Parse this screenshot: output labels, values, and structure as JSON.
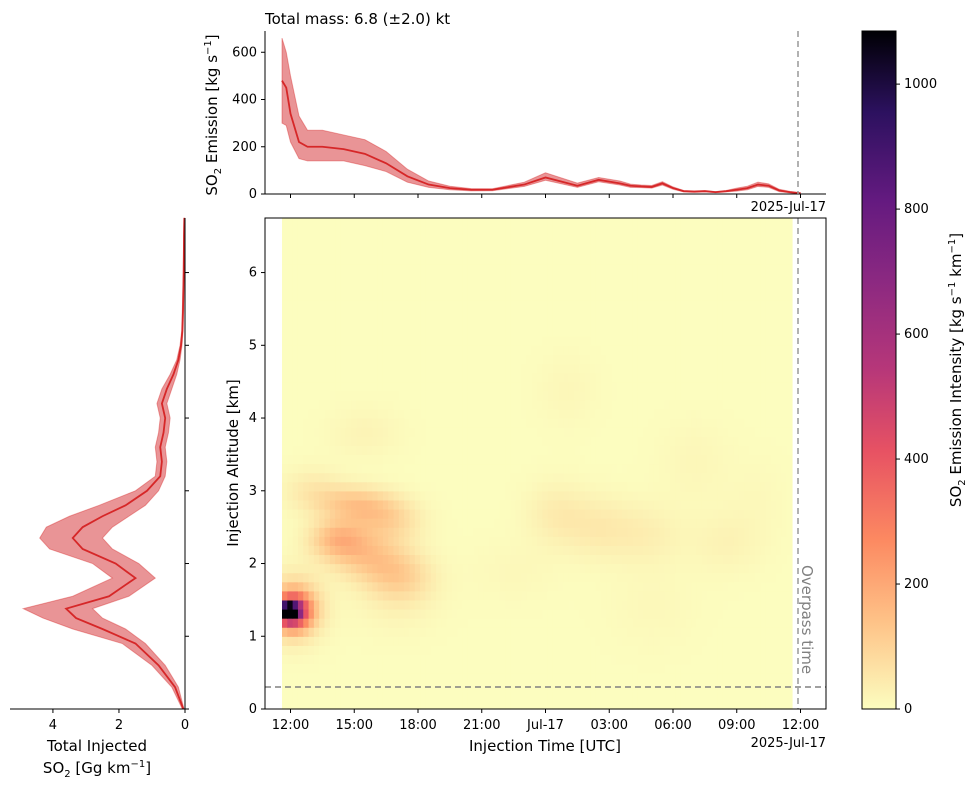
{
  "top_panel": {
    "title": "Total mass: 6.8 (±2.0) kt",
    "ylabel_prefix": "SO",
    "ylabel_sub": "2",
    "ylabel_main": " Emission [kg s",
    "ylabel_sup": "−1",
    "ylabel_close": "]",
    "date_label": "2025-Jul-17"
  },
  "left_panel": {
    "xlabel_line1": "Total Injected",
    "xlabel_line2_prefix": "SO",
    "xlabel_line2_sub": "2",
    "xlabel_line2_main": " [Gg km",
    "xlabel_line2_sup": "−1",
    "xlabel_line2_close": "]"
  },
  "main_panel": {
    "xlabel": "Injection Time [UTC]",
    "ylabel": "Injection Altitude [km]",
    "date_label": "2025-Jul-17",
    "overpass_label": "Overpass time"
  },
  "colorbar": {
    "label_prefix": "SO",
    "label_sub": "2",
    "label_main": " Emission Intensity [kg s",
    "label_sup1": "−1",
    "label_mid": " km",
    "label_sup2": "−1",
    "label_close": "]",
    "colormap": "magma_r",
    "range": [
      0,
      1085
    ],
    "ticks": [
      "0",
      "200",
      "400",
      "600",
      "800",
      "1000"
    ]
  },
  "colors": {
    "line": "#d62728",
    "band": "#e88e90",
    "reference_line": "#999999"
  },
  "chart_data": [
    {
      "panel": "top",
      "type": "line",
      "x_unit": "hours since 2025-07-16 12:00 UTC",
      "x": [
        -0.4,
        -0.2,
        0,
        0.4,
        0.8,
        1.5,
        2.5,
        3.5,
        4.5,
        5.5,
        6.5,
        7.5,
        8.5,
        9.5,
        11,
        12,
        13.5,
        14.5,
        15.5,
        16,
        16.5,
        17,
        17.5,
        18,
        18.5,
        19,
        19.5,
        20,
        20.5,
        21,
        21.5,
        22,
        22.5,
        23,
        23.5,
        24
      ],
      "y": [
        480,
        450,
        340,
        220,
        200,
        200,
        190,
        170,
        130,
        75,
        40,
        25,
        18,
        18,
        40,
        70,
        35,
        60,
        45,
        35,
        32,
        30,
        45,
        25,
        12,
        10,
        12,
        8,
        12,
        18,
        25,
        40,
        35,
        15,
        8,
        3
      ],
      "y_upper": [
        660,
        600,
        500,
        330,
        270,
        270,
        250,
        230,
        180,
        105,
        55,
        33,
        23,
        22,
        50,
        90,
        46,
        70,
        55,
        42,
        38,
        36,
        52,
        30,
        15,
        13,
        15,
        10,
        15,
        25,
        33,
        50,
        43,
        20,
        11,
        5
      ],
      "y_lower": [
        300,
        290,
        220,
        150,
        140,
        140,
        140,
        120,
        95,
        50,
        28,
        18,
        13,
        14,
        32,
        58,
        28,
        52,
        38,
        28,
        27,
        25,
        38,
        20,
        9,
        7,
        9,
        6,
        9,
        12,
        18,
        32,
        28,
        10,
        5,
        1
      ],
      "ylabel": "SO2 Emission [kg s-1]",
      "ylim": [
        0,
        690
      ],
      "yticks": [
        0,
        200,
        400,
        600
      ],
      "title": "Total mass: 6.8 (±2.0) kt"
    },
    {
      "panel": "left",
      "type": "line",
      "orientation": "horizontal",
      "altitude_km": [
        0.0,
        0.3,
        0.6,
        0.9,
        1.1,
        1.25,
        1.38,
        1.55,
        1.8,
        2.0,
        2.2,
        2.35,
        2.5,
        2.65,
        2.8,
        3.0,
        3.2,
        3.4,
        3.6,
        3.8,
        4.0,
        4.2,
        4.4,
        4.6,
        4.8,
        5.0,
        5.2,
        5.5,
        6.0,
        6.5,
        6.75
      ],
      "value": [
        0.05,
        0.3,
        0.8,
        1.5,
        2.5,
        3.3,
        3.6,
        2.3,
        1.5,
        2.1,
        3.1,
        3.4,
        3.1,
        2.5,
        1.8,
        1.15,
        0.75,
        0.7,
        0.75,
        0.65,
        0.6,
        0.7,
        0.55,
        0.35,
        0.2,
        0.12,
        0.08,
        0.06,
        0.04,
        0.03,
        0.02
      ],
      "upper": [
        0.08,
        0.4,
        1.0,
        1.9,
        3.4,
        4.3,
        4.9,
        3.4,
        2.2,
        2.8,
        4.1,
        4.4,
        4.2,
        3.5,
        2.6,
        1.5,
        0.9,
        0.85,
        0.9,
        0.8,
        0.75,
        0.85,
        0.7,
        0.45,
        0.25,
        0.15,
        0.1,
        0.08,
        0.05,
        0.04,
        0.03
      ],
      "lower": [
        0.03,
        0.2,
        0.6,
        1.2,
        1.8,
        2.5,
        2.8,
        1.7,
        0.9,
        1.4,
        2.2,
        2.5,
        2.2,
        1.7,
        1.2,
        0.8,
        0.6,
        0.55,
        0.6,
        0.5,
        0.45,
        0.55,
        0.4,
        0.25,
        0.15,
        0.09,
        0.06,
        0.04,
        0.03,
        0.02,
        0.01
      ],
      "xlabel": "Total Injected SO2 [Gg km-1]",
      "xlim": [
        5.3,
        0
      ],
      "xticks": [
        4,
        2,
        0
      ]
    },
    {
      "panel": "main",
      "type": "heatmap",
      "x_unit": "hours since 2025-07-16 12:00 UTC",
      "xlim": [
        -1.2,
        25.2
      ],
      "ylim": [
        0,
        6.75
      ],
      "xtick_values": [
        0,
        3,
        6,
        9,
        12,
        15,
        18,
        21,
        24
      ],
      "xtick_labels": [
        "12:00",
        "15:00",
        "18:00",
        "21:00",
        "Jul-17",
        "03:00",
        "06:00",
        "09:00",
        "12:00"
      ],
      "yticks": [
        0,
        1,
        2,
        3,
        4,
        5,
        6
      ],
      "data_extent_x": [
        -0.4,
        23.6
      ],
      "overpass_time": 23.6,
      "reference_altitude_km": 0.3,
      "features": [
        {
          "x": -0.1,
          "y": 1.35,
          "intensity": 1085,
          "sx": 0.3,
          "sy": 0.07
        },
        {
          "x": 0.1,
          "y": 1.35,
          "intensity": 520,
          "sx": 0.55,
          "sy": 0.16
        },
        {
          "x": 0.2,
          "y": 1.4,
          "intensity": 150,
          "sx": 0.9,
          "sy": 0.3
        },
        {
          "x": 2.2,
          "y": 2.35,
          "intensity": 130,
          "sx": 0.9,
          "sy": 0.18
        },
        {
          "x": 3.2,
          "y": 2.2,
          "intensity": 85,
          "sx": 1.2,
          "sy": 0.22
        },
        {
          "x": 4.2,
          "y": 2.0,
          "intensity": 70,
          "sx": 1.2,
          "sy": 0.22
        },
        {
          "x": 5.2,
          "y": 1.8,
          "intensity": 65,
          "sx": 1.0,
          "sy": 0.22
        },
        {
          "x": 2.8,
          "y": 2.85,
          "intensity": 95,
          "sx": 1.3,
          "sy": 0.16
        },
        {
          "x": 3.8,
          "y": 2.7,
          "intensity": 75,
          "sx": 1.2,
          "sy": 0.18
        },
        {
          "x": 4.8,
          "y": 2.55,
          "intensity": 55,
          "sx": 1.0,
          "sy": 0.2
        },
        {
          "x": 1.0,
          "y": 3.05,
          "intensity": 40,
          "sx": 1.0,
          "sy": 0.2
        },
        {
          "x": 3.5,
          "y": 3.8,
          "intensity": 22,
          "sx": 1.2,
          "sy": 0.25
        },
        {
          "x": 5.0,
          "y": 1.6,
          "intensity": 30,
          "sx": 1.4,
          "sy": 0.35
        },
        {
          "x": 12.5,
          "y": 2.7,
          "intensity": 38,
          "sx": 1.0,
          "sy": 0.3
        },
        {
          "x": 14.5,
          "y": 2.5,
          "intensity": 42,
          "sx": 1.2,
          "sy": 0.3
        },
        {
          "x": 16.8,
          "y": 2.4,
          "intensity": 30,
          "sx": 1.2,
          "sy": 0.3
        },
        {
          "x": 20.5,
          "y": 2.3,
          "intensity": 24,
          "sx": 1.2,
          "sy": 0.3
        },
        {
          "x": 13.0,
          "y": 4.4,
          "intensity": 15,
          "sx": 1.0,
          "sy": 0.35
        },
        {
          "x": 19.0,
          "y": 3.4,
          "intensity": 15,
          "sx": 1.2,
          "sy": 0.4
        },
        {
          "x": 17.0,
          "y": 1.4,
          "intensity": 12,
          "sx": 1.5,
          "sy": 0.4
        },
        {
          "x": 10.5,
          "y": 1.9,
          "intensity": 12,
          "sx": 1.5,
          "sy": 0.3
        },
        {
          "x": 22.0,
          "y": 2.9,
          "intensity": 10,
          "sx": 1.0,
          "sy": 0.4
        }
      ],
      "xlabel": "Injection Time [UTC]",
      "ylabel": "Injection Altitude [km]"
    }
  ]
}
